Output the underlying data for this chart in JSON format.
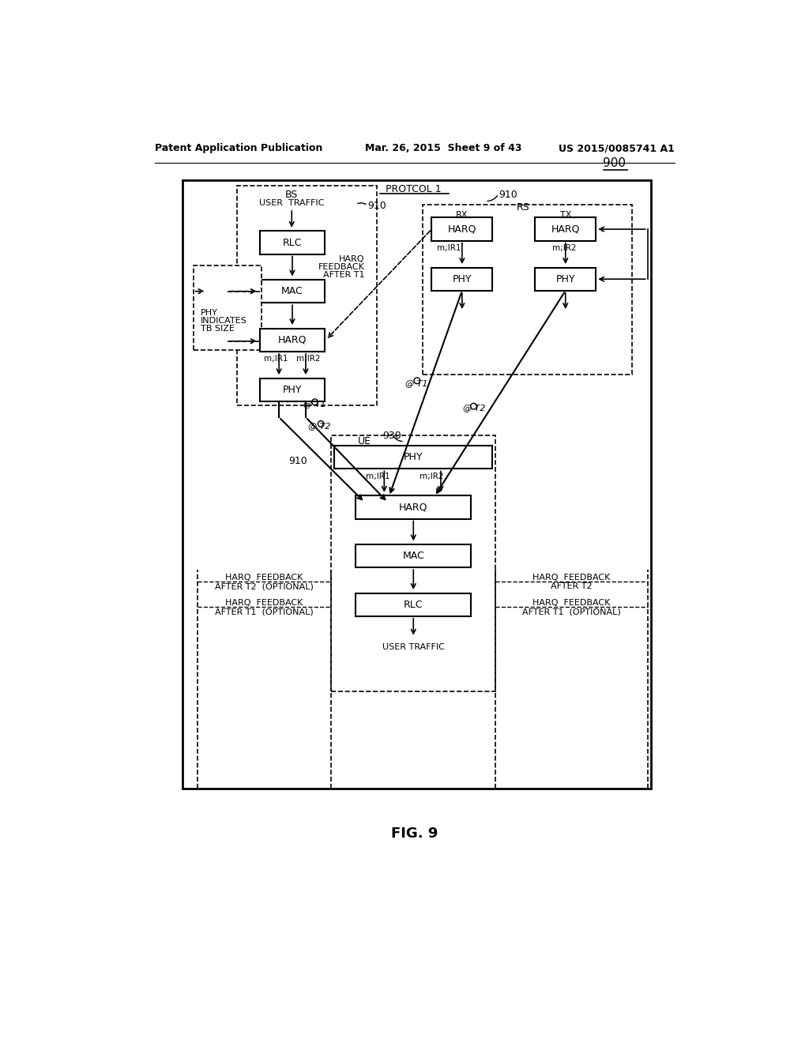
{
  "title_left": "Patent Application Publication",
  "title_mid": "Mar. 26, 2015  Sheet 9 of 43",
  "title_right": "US 2015/0085741 A1",
  "fig_label": "FIG. 9",
  "diagram_label": "900",
  "protocol_label": "PROTCOL 1",
  "bg_color": "#ffffff"
}
